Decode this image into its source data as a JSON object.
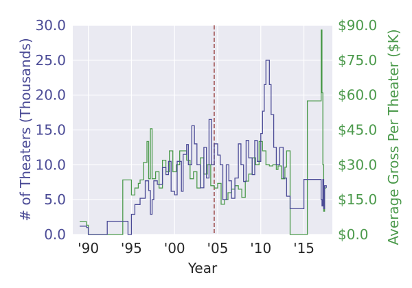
{
  "chart_data": {
    "type": "line",
    "title": "",
    "xlabel": "Year",
    "ylabel_left": "# of Theaters (Thousands)",
    "ylabel_right": "Average Gross Per Theater ($K)",
    "xlim": [
      1988.2,
      2018.3
    ],
    "ylim_left": [
      0,
      30
    ],
    "ylim_right": [
      0,
      90
    ],
    "grid": true,
    "x_ticks": [
      {
        "value": 1990,
        "label": "'90"
      },
      {
        "value": 1995,
        "label": "'95"
      },
      {
        "value": 2000,
        "label": "'00"
      },
      {
        "value": 2005,
        "label": "'05"
      },
      {
        "value": 2010,
        "label": "'10"
      },
      {
        "value": 2015,
        "label": "'15"
      }
    ],
    "y_left_ticks": [
      {
        "value": 0,
        "label": "0.0"
      },
      {
        "value": 5,
        "label": "5.0"
      },
      {
        "value": 10,
        "label": "10.0"
      },
      {
        "value": 15,
        "label": "15.0"
      },
      {
        "value": 20,
        "label": "20.0"
      },
      {
        "value": 25,
        "label": "25.0"
      },
      {
        "value": 30,
        "label": "30.0"
      }
    ],
    "y_right_ticks": [
      {
        "value": 0,
        "label": "$0.0"
      },
      {
        "value": 15,
        "label": "$15.0"
      },
      {
        "value": 30,
        "label": "$30.0"
      },
      {
        "value": 45,
        "label": "$45.0"
      },
      {
        "value": 60,
        "label": "$60.0"
      },
      {
        "value": 75,
        "label": "$75.0"
      },
      {
        "value": 90,
        "label": "$90.0"
      }
    ],
    "reference_line": {
      "x": 2004.6
    },
    "series": [
      {
        "name": "# of Theaters (Thousands)",
        "axis": "left",
        "color": "#4b4b96",
        "x": [
          1989.0,
          1989.8,
          1990.0,
          1992.2,
          1994.6,
          1995.0,
          1995.4,
          1996.0,
          1996.6,
          1997.0,
          1997.2,
          1997.4,
          1997.6,
          1998.0,
          1998.6,
          1999.0,
          1999.3,
          1999.6,
          2000.0,
          2000.3,
          2000.8,
          2001.0,
          2001.4,
          2001.6,
          2002.0,
          2002.3,
          2002.6,
          2003.0,
          2003.4,
          2003.7,
          2004.0,
          2004.3,
          2004.6,
          2005.0,
          2005.3,
          2005.6,
          2006.0,
          2006.3,
          2006.6,
          2007.0,
          2007.4,
          2007.7,
          2008.0,
          2008.3,
          2008.6,
          2009.0,
          2009.3,
          2009.6,
          2010.0,
          2010.2,
          2010.4,
          2010.6,
          2011.0,
          2011.2,
          2011.5,
          2011.8,
          2012.2,
          2012.6,
          2013.0,
          2013.4,
          2014.0,
          2014.4,
          2015.0,
          2015.6,
          2016.0,
          2016.5,
          2017.0,
          2017.1,
          2017.2,
          2017.3,
          2017.4,
          2017.6
        ],
        "y": [
          1.2,
          1.0,
          0.0,
          1.9,
          0.0,
          2.9,
          4.3,
          5.2,
          7.7,
          6.3,
          2.9,
          5.0,
          7.7,
          7.2,
          9.6,
          8.6,
          10.5,
          6.2,
          5.7,
          10.5,
          6.2,
          11.5,
          12.9,
          10.0,
          15.6,
          13.0,
          10.0,
          6.7,
          12.5,
          8.1,
          16.5,
          10.0,
          13.0,
          11.4,
          10.0,
          5.0,
          10.0,
          7.7,
          5.2,
          8.1,
          13.0,
          10.0,
          7.6,
          13.5,
          11.0,
          8.6,
          13.5,
          10.5,
          14.5,
          17.7,
          21.5,
          25.0,
          21.5,
          17.2,
          12.5,
          10.0,
          12.5,
          8.1,
          5.5,
          3.7,
          3.7,
          3.7,
          7.9,
          7.9,
          7.9,
          7.9,
          5.0,
          4.1,
          7.9,
          3.7,
          7.0,
          6.7
        ]
      },
      {
        "name": "Average Gross Per Theater ($K)",
        "axis": "right",
        "color": "#4c9a4c",
        "x": [
          1989.0,
          1989.8,
          1990.0,
          1991.8,
          1994.0,
          1995.0,
          1995.4,
          1995.8,
          1996.0,
          1996.4,
          1996.8,
          1997.0,
          1997.2,
          1997.4,
          1997.8,
          1998.2,
          1998.6,
          1999.0,
          1999.4,
          1999.8,
          2000.2,
          2000.6,
          2001.0,
          2001.4,
          2001.8,
          2002.2,
          2002.6,
          2003.0,
          2003.4,
          2003.8,
          2004.2,
          2004.6,
          2005.0,
          2005.4,
          2005.8,
          2006.2,
          2006.6,
          2007.0,
          2007.4,
          2007.8,
          2008.2,
          2008.6,
          2009.0,
          2009.4,
          2009.8,
          2010.2,
          2010.6,
          2011.0,
          2011.4,
          2011.8,
          2012.0,
          2012.4,
          2012.8,
          2013.0,
          2013.4,
          2015.0,
          2015.4,
          2016.8,
          2017.0,
          2017.1,
          2017.2,
          2017.3,
          2017.4,
          2017.6
        ],
        "y": [
          5.5,
          4.0,
          0.0,
          0.0,
          23.5,
          17.0,
          20.0,
          22.0,
          23.5,
          31.0,
          40.0,
          24.0,
          45.5,
          24.0,
          27.0,
          20.0,
          32.0,
          27.0,
          36.0,
          27.0,
          30.0,
          36.0,
          36.0,
          32.0,
          24.0,
          27.0,
          20.0,
          33.0,
          26.0,
          30.0,
          21.0,
          20.0,
          22.0,
          13.0,
          15.0,
          18.0,
          19.5,
          21.0,
          19.5,
          16.0,
          23.0,
          26.0,
          33.0,
          30.0,
          40.0,
          36.0,
          30.0,
          29.5,
          30.0,
          28.0,
          29.5,
          24.0,
          29.0,
          36.0,
          0.0,
          0.0,
          57.5,
          57.5,
          88.0,
          61.0,
          30.0,
          10.0,
          20.0,
          20.0
        ]
      }
    ]
  }
}
